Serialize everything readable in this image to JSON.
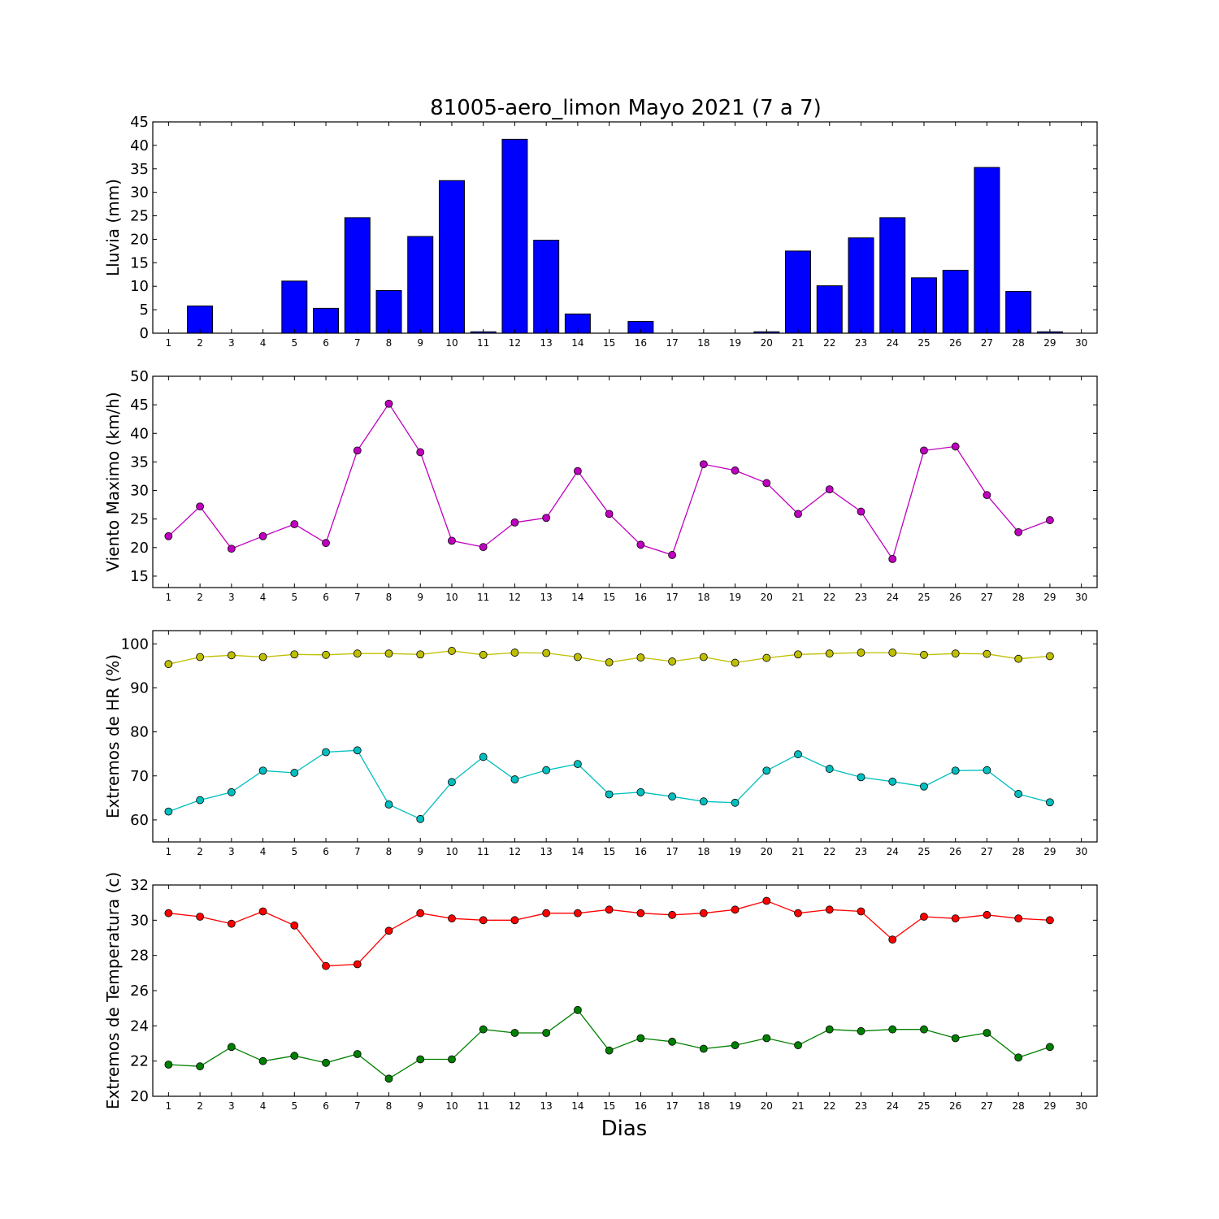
{
  "title": "81005-aero_limon Mayo 2021  (7 a 7)",
  "xlabel": "Dias",
  "x_ticks": [
    "1",
    "2",
    "3",
    "4",
    "5",
    "6",
    "7",
    "8",
    "9",
    "10",
    "11",
    "12",
    "13",
    "14",
    "15",
    "16",
    "17",
    "18",
    "19",
    "20",
    "21",
    "22",
    "23",
    "24",
    "25",
    "26",
    "27",
    "28",
    "29",
    "30"
  ],
  "chart_data": [
    {
      "type": "bar",
      "ylabel": "Lluvia (mm)",
      "ylim": [
        0,
        45
      ],
      "yticks": [
        0,
        5,
        10,
        15,
        20,
        25,
        30,
        35,
        40,
        45
      ],
      "x": [
        1,
        2,
        3,
        4,
        5,
        6,
        7,
        8,
        9,
        10,
        11,
        12,
        13,
        14,
        15,
        16,
        17,
        18,
        19,
        20,
        21,
        22,
        23,
        24,
        25,
        26,
        27,
        28,
        29
      ],
      "series": [
        {
          "color": "#0000ff",
          "values": [
            0,
            5.8,
            0,
            0,
            11.1,
            5.3,
            24.6,
            9.1,
            20.6,
            32.5,
            0.3,
            41.3,
            19.8,
            4.1,
            0,
            2.5,
            0,
            0,
            0,
            0.3,
            17.5,
            10.1,
            20.3,
            24.6,
            11.8,
            13.4,
            35.3,
            8.9,
            0.3
          ]
        }
      ],
      "xlim": [
        0.5,
        30.5
      ],
      "grid": false
    },
    {
      "type": "line",
      "ylabel": "Viento Maximo (km/h)",
      "ylim": [
        13,
        50
      ],
      "yticks": [
        15,
        20,
        25,
        30,
        35,
        40,
        45,
        50
      ],
      "x": [
        1,
        2,
        3,
        4,
        5,
        6,
        7,
        8,
        9,
        10,
        11,
        12,
        13,
        14,
        15,
        16,
        17,
        18,
        19,
        20,
        21,
        22,
        23,
        24,
        25,
        26,
        27,
        28,
        29
      ],
      "series": [
        {
          "color": "#bf00bf",
          "values": [
            22.0,
            27.2,
            19.8,
            22.0,
            24.1,
            20.8,
            37.0,
            45.2,
            36.7,
            21.2,
            20.1,
            24.4,
            25.2,
            33.4,
            25.9,
            20.5,
            18.7,
            34.6,
            33.5,
            31.3,
            25.9,
            30.2,
            26.3,
            18.0,
            37.0,
            37.7,
            29.2,
            22.7,
            24.8
          ]
        }
      ],
      "xlim": [
        0.5,
        30.5
      ],
      "grid": false
    },
    {
      "type": "line",
      "ylabel": "Extremos de HR (%)",
      "ylim": [
        55,
        103
      ],
      "yticks": [
        60,
        70,
        80,
        90,
        100
      ],
      "x": [
        1,
        2,
        3,
        4,
        5,
        6,
        7,
        8,
        9,
        10,
        11,
        12,
        13,
        14,
        15,
        16,
        17,
        18,
        19,
        20,
        21,
        22,
        23,
        24,
        25,
        26,
        27,
        28,
        29
      ],
      "series": [
        {
          "color": "#bfbf00",
          "values": [
            95.4,
            97.0,
            97.4,
            97.0,
            97.6,
            97.5,
            97.8,
            97.8,
            97.6,
            98.4,
            97.5,
            98.0,
            97.9,
            97.0,
            95.8,
            96.9,
            96.0,
            97.0,
            95.7,
            96.8,
            97.6,
            97.8,
            98.0,
            98.0,
            97.5,
            97.8,
            97.7,
            96.6,
            97.2
          ]
        },
        {
          "color": "#00bfbf",
          "values": [
            61.9,
            64.5,
            66.3,
            71.2,
            70.7,
            75.4,
            75.8,
            63.5,
            60.2,
            68.6,
            74.3,
            69.2,
            71.3,
            72.7,
            65.8,
            66.3,
            65.3,
            64.2,
            63.9,
            71.2,
            74.9,
            71.6,
            69.7,
            68.7,
            67.6,
            71.2,
            71.3,
            65.9,
            64.0
          ]
        }
      ],
      "xlim": [
        0.5,
        30.5
      ],
      "grid": false
    },
    {
      "type": "line",
      "ylabel": "Extremos de Temperatura (c)",
      "ylim": [
        20,
        32
      ],
      "yticks": [
        20,
        22,
        24,
        26,
        28,
        30,
        32
      ],
      "x": [
        1,
        2,
        3,
        4,
        5,
        6,
        7,
        8,
        9,
        10,
        11,
        12,
        13,
        14,
        15,
        16,
        17,
        18,
        19,
        20,
        21,
        22,
        23,
        24,
        25,
        26,
        27,
        28,
        29
      ],
      "series": [
        {
          "color": "#ff0000",
          "values": [
            30.4,
            30.2,
            29.8,
            30.5,
            29.7,
            27.4,
            27.5,
            29.4,
            30.4,
            30.1,
            30.0,
            30.0,
            30.4,
            30.4,
            30.6,
            30.4,
            30.3,
            30.4,
            30.6,
            31.1,
            30.4,
            30.6,
            30.5,
            28.9,
            30.2,
            30.1,
            30.3,
            30.1,
            30.0
          ]
        },
        {
          "color": "#008000",
          "values": [
            21.8,
            21.7,
            22.8,
            22.0,
            22.3,
            21.9,
            22.4,
            21.0,
            22.1,
            22.1,
            23.8,
            23.6,
            23.6,
            24.9,
            22.6,
            23.3,
            23.1,
            22.7,
            22.9,
            23.3,
            22.9,
            23.8,
            23.7,
            23.8,
            23.8,
            23.3,
            23.6,
            22.2,
            22.8
          ]
        }
      ],
      "xlim": [
        0.5,
        30.5
      ],
      "grid": false
    }
  ]
}
